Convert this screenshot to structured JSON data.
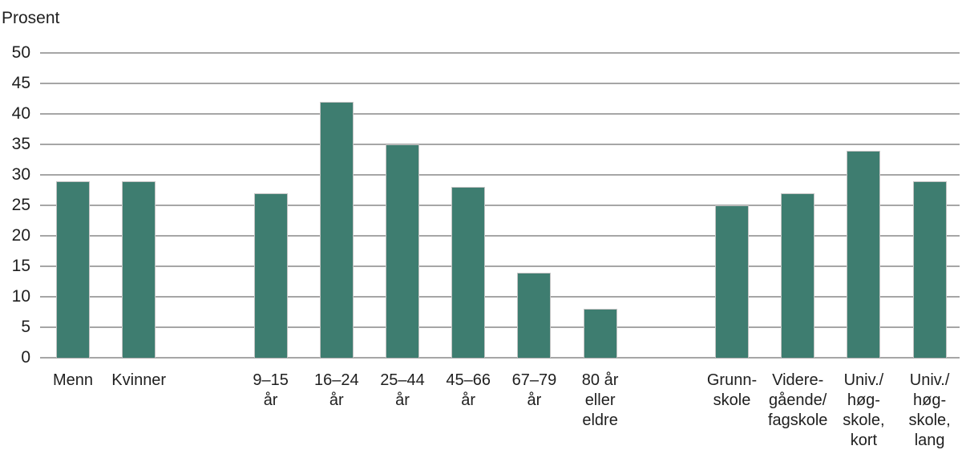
{
  "chart_data": {
    "type": "bar",
    "title": "",
    "ylabel": "Prosent",
    "xlabel": "",
    "ylim": [
      0,
      50
    ],
    "ytick_step": 5,
    "yticks": [
      "0",
      "5",
      "10",
      "15",
      "20",
      "25",
      "30",
      "35",
      "40",
      "45",
      "50"
    ],
    "grid": true,
    "legend": "none",
    "bar_color": "#3e7d70",
    "bar_border_color": "#c4c4c4",
    "grid_color": "#a6a6a6",
    "text_color": "#1f1f1f",
    "groups": [
      {
        "name": "gender",
        "categories": [
          {
            "label_lines": [
              "Menn"
            ],
            "value": 29
          },
          {
            "label_lines": [
              "Kvinner"
            ],
            "value": 29
          }
        ]
      },
      {
        "name": "age",
        "categories": [
          {
            "label_lines": [
              "9–15",
              "år"
            ],
            "value": 27
          },
          {
            "label_lines": [
              "16–24",
              "år"
            ],
            "value": 42
          },
          {
            "label_lines": [
              "25–44",
              "år"
            ],
            "value": 35
          },
          {
            "label_lines": [
              "45–66",
              "år"
            ],
            "value": 28
          },
          {
            "label_lines": [
              "67–79",
              "år"
            ],
            "value": 14
          },
          {
            "label_lines": [
              "80 år",
              "eller",
              "eldre"
            ],
            "value": 8
          }
        ]
      },
      {
        "name": "education",
        "categories": [
          {
            "label_lines": [
              "Grunn-",
              "skole"
            ],
            "value": 25
          },
          {
            "label_lines": [
              "Videre-",
              "gående/",
              "fagskole"
            ],
            "value": 27
          },
          {
            "label_lines": [
              "Univ./",
              "høg-",
              "skole,",
              "kort"
            ],
            "value": 34
          },
          {
            "label_lines": [
              "Univ./",
              "høg-",
              "skole,",
              "lang"
            ],
            "value": 29
          }
        ]
      }
    ]
  }
}
